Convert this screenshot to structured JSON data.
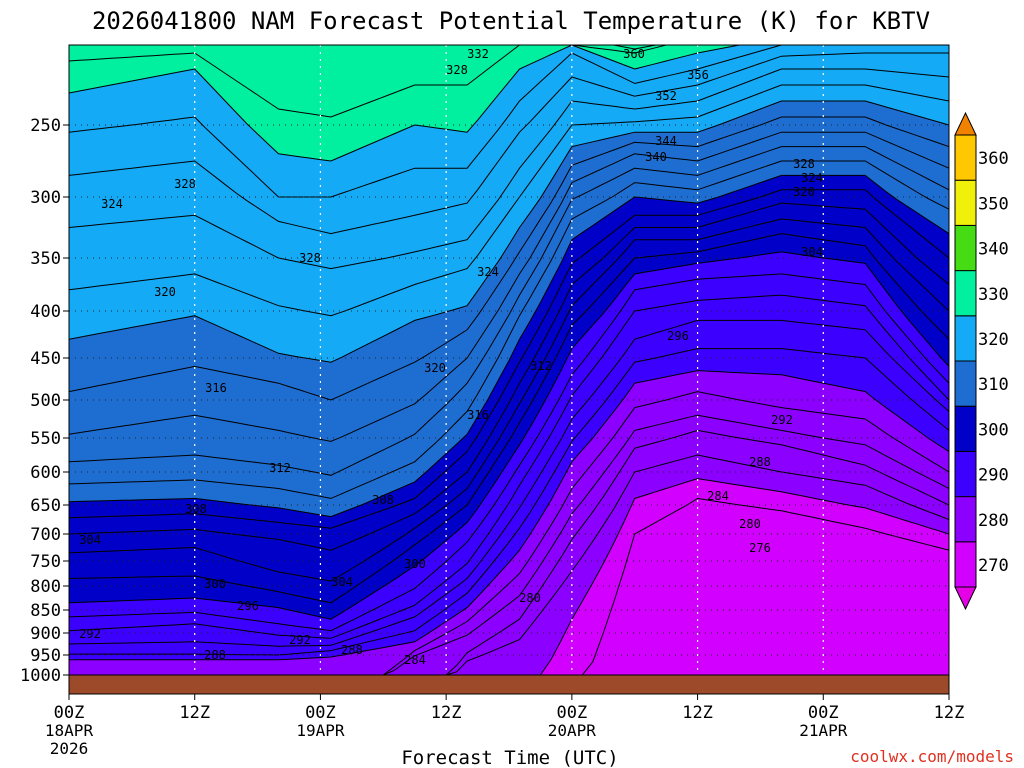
{
  "chart_data": {
    "type": "heatmap",
    "title": "2026041800 NAM Forecast Potential Temperature (K) for KBTV",
    "xlabel": "Forecast Time (UTC)",
    "ylabel": "",
    "credit": "coolwx.com/models",
    "units": "K",
    "y_axis": {
      "scale": "pressure (hPa), decreasing upward",
      "ticks": [
        250,
        300,
        350,
        400,
        450,
        500,
        550,
        600,
        650,
        700,
        750,
        800,
        850,
        900,
        950,
        1000
      ],
      "ylim": [
        1000,
        200
      ]
    },
    "x_axis": {
      "ticks": [
        {
          "hour": 0,
          "label": "00Z",
          "date": "18APR",
          "year": "2026"
        },
        {
          "hour": 12,
          "label": "12Z",
          "date": "",
          "year": ""
        },
        {
          "hour": 24,
          "label": "00Z",
          "date": "19APR",
          "year": ""
        },
        {
          "hour": 36,
          "label": "12Z",
          "date": "",
          "year": ""
        },
        {
          "hour": 48,
          "label": "00Z",
          "date": "20APR",
          "year": ""
        },
        {
          "hour": 60,
          "label": "12Z",
          "date": "",
          "year": ""
        },
        {
          "hour": 72,
          "label": "00Z",
          "date": "21APR",
          "year": ""
        },
        {
          "hour": 84,
          "label": "12Z",
          "date": "",
          "year": ""
        }
      ],
      "xlim": [
        0,
        84
      ]
    },
    "colorbar": {
      "ticks": [
        270,
        280,
        290,
        300,
        310,
        320,
        330,
        340,
        350,
        360
      ],
      "levels": [
        260,
        270,
        280,
        290,
        300,
        310,
        320,
        330,
        340,
        350,
        360,
        370
      ],
      "colors": [
        "#e600e6",
        "#d200ff",
        "#8c00ff",
        "#3c00ff",
        "#0000c8",
        "#1e6ed2",
        "#14aaf5",
        "#00f0a0",
        "#46dc14",
        "#f0f00a",
        "#ffc800",
        "#f08200"
      ]
    },
    "contour_interval_K": 2,
    "contour_labels_shown": [
      276,
      280,
      280,
      284,
      284,
      288,
      288,
      288,
      292,
      292,
      292,
      296,
      296,
      300,
      300,
      304,
      304,
      304,
      308,
      308,
      312,
      312,
      316,
      316,
      320,
      320,
      320,
      324,
      324,
      324,
      328,
      328,
      328,
      328,
      332,
      340,
      344,
      352,
      356,
      360
    ],
    "series": [
      {
        "hour": 0,
        "p_at_theta": {
          "288": 975,
          "290": 962,
          "292": 948,
          "294": 925,
          "296": 895,
          "298": 865,
          "300": 835,
          "302": 785,
          "304": 735,
          "306": 700,
          "308": 672,
          "310": 645,
          "312": 618,
          "314": 585,
          "316": 545,
          "318": 490,
          "320": 430,
          "322": 380,
          "324": 325,
          "326": 285,
          "328": 255,
          "330": 230,
          "332": 210
        }
      },
      {
        "hour": 12,
        "p_at_theta": {
          "288": 975,
          "290": 962,
          "292": 948,
          "294": 920,
          "296": 880,
          "298": 855,
          "300": 825,
          "302": 780,
          "304": 725,
          "306": 692,
          "308": 665,
          "310": 640,
          "312": 612,
          "314": 575,
          "316": 520,
          "318": 460,
          "320": 405,
          "322": 365,
          "324": 315,
          "326": 275,
          "328": 245,
          "330": 215,
          "332": 205
        }
      },
      {
        "hour": 20,
        "p_at_theta": {
          "288": 975,
          "290": 962,
          "292": 950,
          "294": 930,
          "296": 905,
          "298": 880,
          "300": 845,
          "302": 812,
          "304": 772,
          "306": 710,
          "308": 680,
          "310": 655,
          "312": 625,
          "314": 590,
          "316": 540,
          "318": 480,
          "320": 445,
          "322": 395,
          "324": 350,
          "326": 320,
          "328": 300,
          "330": 270,
          "332": 240
        }
      },
      {
        "hour": 25,
        "p_at_theta": {
          "288": 965,
          "290": 955,
          "292": 940,
          "294": 928,
          "296": 912,
          "298": 895,
          "300": 870,
          "302": 835,
          "304": 790,
          "306": 730,
          "308": 690,
          "310": 670,
          "312": 640,
          "314": 605,
          "316": 555,
          "318": 500,
          "320": 455,
          "322": 405,
          "324": 360,
          "326": 330,
          "328": 300,
          "330": 275,
          "332": 245
        }
      },
      {
        "hour": 33,
        "p_at_theta": {
          "284": 965,
          "286": 952,
          "288": 940,
          "290": 920,
          "292": 895,
          "294": 865,
          "296": 840,
          "298": 805,
          "300": 760,
          "302": 720,
          "304": 690,
          "306": 665,
          "308": 640,
          "310": 615,
          "312": 585,
          "314": 545,
          "316": 505,
          "318": 455,
          "320": 410,
          "322": 375,
          "324": 345,
          "326": 315,
          "328": 280,
          "330": 250,
          "332": 225
        }
      },
      {
        "hour": 38,
        "p_at_theta": {
          "280": 975,
          "282": 965,
          "284": 945,
          "286": 905,
          "288": 875,
          "290": 845,
          "292": 815,
          "294": 785,
          "296": 755,
          "298": 715,
          "300": 680,
          "302": 650,
          "304": 625,
          "306": 600,
          "308": 570,
          "310": 545,
          "312": 515,
          "314": 480,
          "316": 450,
          "318": 420,
          "320": 395,
          "322": 360,
          "324": 335,
          "326": 305,
          "328": 280,
          "330": 255,
          "332": 225
        }
      },
      {
        "hour": 43,
        "p_at_theta": {
          "280": 950,
          "282": 915,
          "284": 870,
          "286": 820,
          "288": 775,
          "290": 730,
          "292": 690,
          "294": 655,
          "296": 620,
          "298": 590,
          "300": 560,
          "302": 530,
          "304": 505,
          "306": 480,
          "308": 455,
          "310": 430,
          "312": 405,
          "314": 385,
          "316": 365,
          "318": 345,
          "320": 325,
          "322": 300,
          "324": 280,
          "326": 255,
          "328": 235,
          "330": 215,
          "332": 200
        }
      },
      {
        "hour": 48,
        "p_at_theta": {
          "278": 940,
          "280": 870,
          "282": 770,
          "284": 710,
          "286": 665,
          "288": 625,
          "290": 585,
          "292": 555,
          "294": 525,
          "296": 495,
          "298": 470,
          "300": 440,
          "302": 415,
          "304": 395,
          "306": 375,
          "308": 355,
          "310": 335,
          "312": 318,
          "314": 302,
          "316": 290,
          "318": 278,
          "320": 265,
          "322": 250,
          "324": 235,
          "326": 220,
          "328": 205,
          "330": 200,
          "332": 200
        }
      },
      {
        "hour": 54,
        "p_at_theta": {
          "276": 790,
          "278": 700,
          "280": 640,
          "282": 600,
          "284": 565,
          "286": 540,
          "288": 510,
          "290": 480,
          "292": 455,
          "294": 430,
          "296": 400,
          "298": 380,
          "300": 365,
          "302": 350,
          "304": 335,
          "306": 325,
          "308": 315,
          "310": 300,
          "312": 290,
          "314": 280,
          "316": 270,
          "318": 262,
          "320": 255,
          "322": 248,
          "324": 240,
          "326": 232,
          "328": 224,
          "330": 215,
          "332": 205,
          "336": 200
        }
      },
      {
        "hour": 60,
        "p_at_theta": {
          "276": 680,
          "278": 640,
          "280": 610,
          "282": 575,
          "284": 540,
          "286": 520,
          "288": 490,
          "290": 465,
          "292": 440,
          "294": 410,
          "296": 390,
          "298": 370,
          "300": 355,
          "302": 345,
          "304": 335,
          "306": 325,
          "308": 315,
          "310": 305,
          "312": 295,
          "314": 285,
          "316": 275,
          "318": 265,
          "320": 255,
          "322": 245,
          "324": 235,
          "326": 225,
          "328": 215,
          "330": 205
        }
      },
      {
        "hour": 68,
        "p_at_theta": {
          "276": 695,
          "278": 660,
          "280": 630,
          "282": 600,
          "284": 560,
          "286": 540,
          "288": 510,
          "290": 470,
          "292": 440,
          "294": 410,
          "296": 385,
          "298": 365,
          "300": 345,
          "302": 330,
          "304": 318,
          "306": 305,
          "308": 295,
          "310": 285,
          "312": 275,
          "314": 265,
          "316": 255,
          "318": 245,
          "320": 235,
          "322": 225,
          "324": 215,
          "326": 207,
          "328": 200
        }
      },
      {
        "hour": 76,
        "p_at_theta": {
          "276": 720,
          "278": 690,
          "280": 655,
          "282": 620,
          "284": 590,
          "286": 560,
          "288": 525,
          "290": 490,
          "292": 450,
          "294": 420,
          "296": 395,
          "298": 375,
          "300": 355,
          "302": 340,
          "304": 325,
          "306": 310,
          "308": 295,
          "310": 285,
          "312": 275,
          "314": 265,
          "316": 255,
          "318": 245,
          "320": 235,
          "322": 225,
          "324": 215,
          "326": 205,
          "328": 200
        }
      },
      {
        "hour": 84,
        "p_at_theta": {
          "276": 760,
          "278": 730,
          "280": 700,
          "282": 675,
          "284": 650,
          "286": 625,
          "288": 600,
          "290": 570,
          "292": 540,
          "294": 515,
          "296": 500,
          "298": 480,
          "300": 460,
          "302": 430,
          "304": 400,
          "306": 375,
          "308": 350,
          "310": 330,
          "312": 310,
          "314": 295,
          "316": 280,
          "318": 265,
          "320": 250,
          "322": 235,
          "324": 220,
          "326": 205,
          "328": 200
        }
      }
    ]
  }
}
